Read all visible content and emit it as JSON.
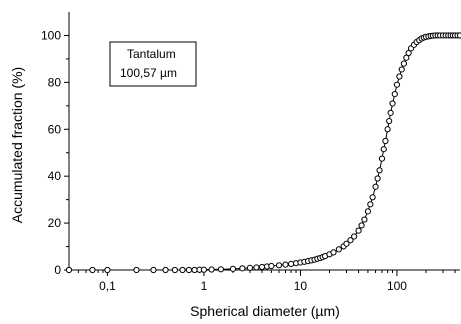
{
  "chart_data": {
    "type": "scatter",
    "xlabel": "Spherical diameter (µm)",
    "ylabel": "Accumulated fraction (%)",
    "x_scale": "log",
    "xlim": [
      0.04,
      450
    ],
    "ylim": [
      0,
      110
    ],
    "x_ticks": [
      {
        "value": 0.1,
        "label": "0,1"
      },
      {
        "value": 1,
        "label": "1"
      },
      {
        "value": 10,
        "label": "10"
      },
      {
        "value": 100,
        "label": "100"
      }
    ],
    "y_ticks": [
      0,
      20,
      40,
      60,
      80,
      100
    ],
    "legend": {
      "placement": "top-left",
      "lines": [
        "Tantalum",
        "100,57 µm"
      ]
    },
    "series": [
      {
        "x": [
          0.04,
          0.07,
          0.1,
          0.2,
          0.3,
          0.4,
          0.5,
          0.6,
          0.7,
          0.8,
          0.9,
          1,
          1.2,
          1.5,
          2,
          2.5,
          3,
          3.5,
          4,
          4.5,
          5,
          6,
          7,
          8,
          9,
          10,
          11,
          12,
          13,
          14,
          15,
          16,
          17,
          18,
          20,
          22,
          25,
          28,
          30,
          33,
          36,
          40,
          43,
          46,
          50,
          53,
          56,
          60,
          63,
          66,
          70,
          73,
          76,
          80,
          83,
          86,
          90,
          95,
          100,
          106,
          112,
          118,
          125,
          132,
          140,
          150,
          160,
          170,
          180,
          190,
          200,
          212,
          224,
          236,
          250,
          265,
          280,
          300,
          320,
          340,
          360,
          380,
          400,
          425,
          450
        ],
        "y": [
          0,
          0,
          0,
          0,
          0,
          0,
          0,
          0,
          0,
          0,
          0.1,
          0.1,
          0.2,
          0.3,
          0.5,
          0.7,
          0.9,
          1.1,
          1.3,
          1.5,
          1.7,
          2.0,
          2.3,
          2.6,
          2.9,
          3.2,
          3.5,
          3.8,
          4.1,
          4.4,
          4.8,
          5.1,
          5.5,
          5.9,
          6.7,
          7.5,
          8.8,
          10.1,
          11.2,
          12.7,
          14.3,
          16.8,
          19.0,
          21.5,
          25.0,
          28.0,
          31.0,
          35.5,
          39.0,
          42.5,
          47.5,
          51.5,
          55.0,
          60.0,
          63.5,
          67.0,
          71.0,
          75.0,
          79.0,
          82.5,
          85.5,
          88.0,
          90.5,
          92.5,
          94.5,
          96.0,
          97.2,
          98.0,
          98.7,
          99.1,
          99.4,
          99.6,
          99.8,
          99.9,
          100,
          100,
          100,
          100,
          100,
          100,
          100,
          100,
          100,
          100,
          100
        ]
      }
    ]
  }
}
